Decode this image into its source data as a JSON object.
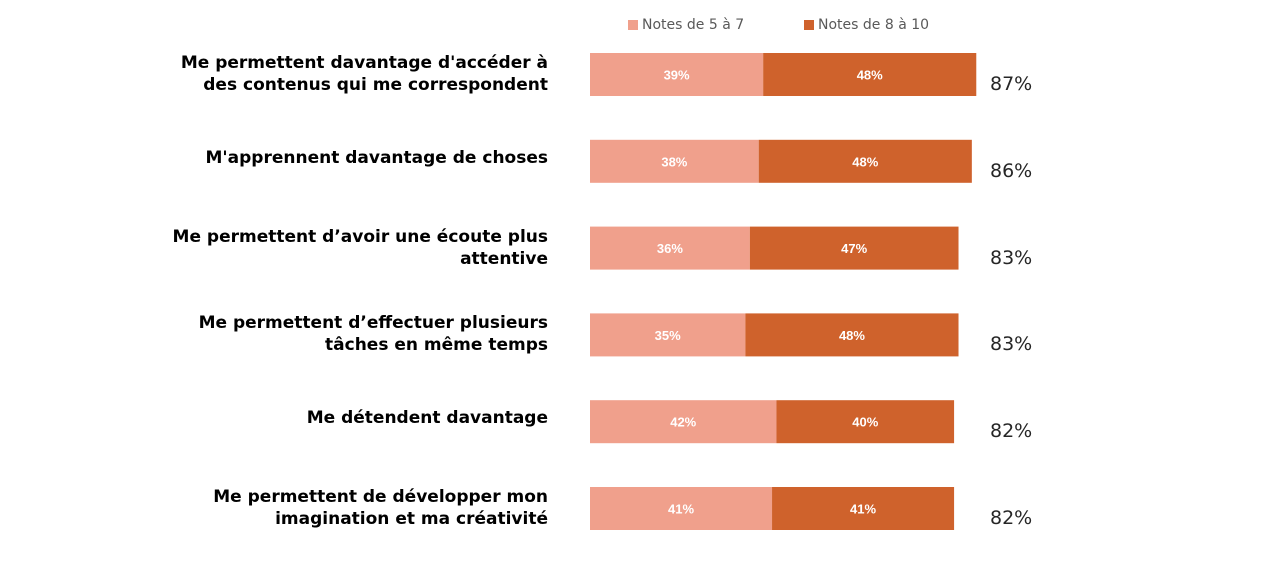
{
  "chart_data": {
    "type": "bar",
    "orientation": "horizontal",
    "stacked": true,
    "title": "",
    "xlabel": "",
    "ylabel": "",
    "xlim": [
      0,
      100
    ],
    "grid": false,
    "legend_position": "top",
    "categories": [
      "Me permettent davantage d'accéder à des contenus qui me correspondent",
      "M'apprennent davantage de choses",
      "Me permettent d’avoir une écoute plus attentive",
      "Me permettent d’effectuer plusieurs tâches en même temps",
      "Me détendent davantage",
      "Me permettent de développer mon imagination et ma créativité"
    ],
    "category_lines": [
      [
        "Me permettent davantage d'accéder à",
        "des contenus qui me correspondent"
      ],
      [
        "M'apprennent davantage de choses"
      ],
      [
        "Me permettent d’avoir une écoute plus",
        "attentive"
      ],
      [
        "Me permettent d’effectuer plusieurs",
        "tâches en même temps"
      ],
      [
        "Me détendent davantage"
      ],
      [
        "Me permettent de développer mon",
        "imagination et ma créativité"
      ]
    ],
    "series": [
      {
        "name": "Notes de 5 à 7",
        "color": "#F0A08C",
        "values": [
          39,
          38,
          36,
          35,
          42,
          41
        ]
      },
      {
        "name": "Notes de 8 à 10",
        "color": "#CF622C",
        "values": [
          48,
          48,
          47,
          48,
          40,
          41
        ]
      }
    ],
    "totals": [
      87,
      86,
      83,
      83,
      82,
      82
    ],
    "value_suffix": "%"
  }
}
